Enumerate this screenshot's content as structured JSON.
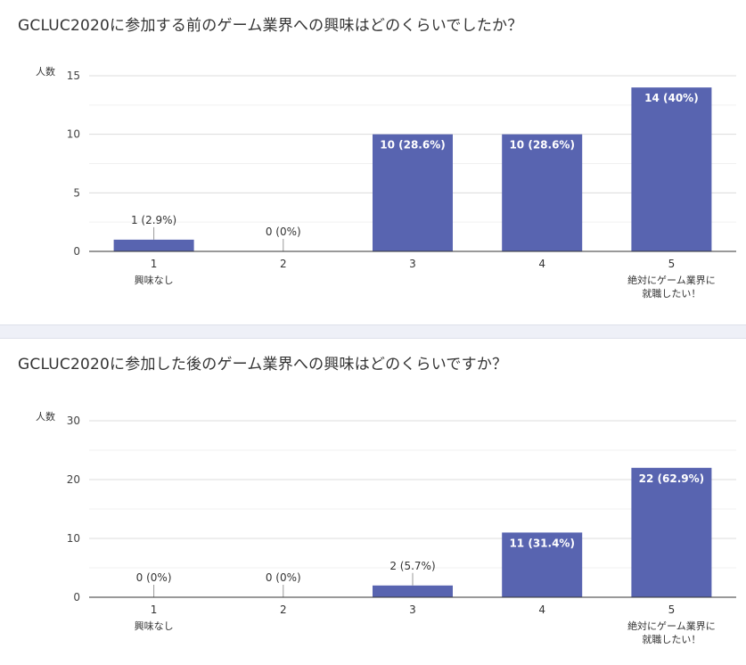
{
  "charts": [
    {
      "title": "GCLUC2020に参加する前のゲーム業界への興味はどのくらいでしたか？",
      "ylabel": "人数"
    },
    {
      "title": "GCLUC2020に参加した後のゲーム業界への興味はどのくらいですか？",
      "ylabel": "人数"
    }
  ],
  "chart_data": [
    {
      "type": "bar",
      "title": "GCLUC2020に参加する前のゲーム業界への興味はどのくらいでしたか？",
      "ylabel": "人数",
      "xlabel": "",
      "categories": [
        "1",
        "2",
        "3",
        "4",
        "5"
      ],
      "category_sublabels": [
        [
          "興味なし"
        ],
        [],
        [],
        [],
        [
          "絶対にゲーム業界に",
          "就職したい！"
        ]
      ],
      "values": [
        1,
        0,
        10,
        10,
        14
      ],
      "data_labels": [
        "1 (2.9%)",
        "0 (0%)",
        "10 (28.6%)",
        "10 (28.6%)",
        "14 (40%)"
      ],
      "ylim": [
        0,
        15
      ],
      "yticks": [
        0,
        5,
        10,
        15
      ],
      "grid": true,
      "bar_color": "#5864b0"
    },
    {
      "type": "bar",
      "title": "GCLUC2020に参加した後のゲーム業界への興味はどのくらいですか？",
      "ylabel": "人数",
      "xlabel": "",
      "categories": [
        "1",
        "2",
        "3",
        "4",
        "5"
      ],
      "category_sublabels": [
        [
          "興味なし"
        ],
        [],
        [],
        [],
        [
          "絶対にゲーム業界に",
          "就職したい！"
        ]
      ],
      "values": [
        0,
        0,
        2,
        11,
        22
      ],
      "data_labels": [
        "0 (0%)",
        "0 (0%)",
        "2 (5.7%)",
        "11 (31.4%)",
        "22 (62.9%)"
      ],
      "ylim": [
        0,
        30
      ],
      "yticks": [
        0,
        10,
        20,
        30
      ],
      "grid": true,
      "bar_color": "#5864b0"
    }
  ]
}
